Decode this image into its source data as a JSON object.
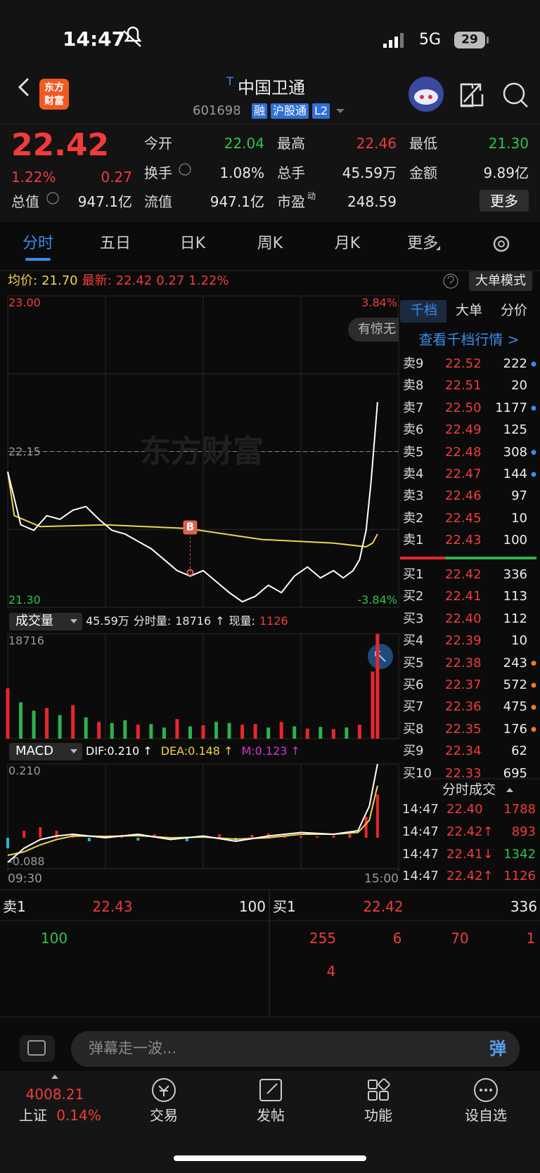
{
  "status_bar": {
    "time": "14:47",
    "network": "5G",
    "battery": "29"
  },
  "header": {
    "logo": [
      "东方",
      "财富"
    ],
    "title_mark": "T",
    "title": "中国卫通",
    "code": "601698",
    "tags": [
      "融",
      "沪股通",
      "L2"
    ]
  },
  "quote": {
    "price": "22.42",
    "change_pct": "1.22%",
    "change": "0.27",
    "more": "更多",
    "fields": [
      {
        "label": "今开",
        "value": "22.04",
        "color": "#2ec34a"
      },
      {
        "label": "最高",
        "value": "22.46",
        "color": "#f23b3b"
      },
      {
        "label": "最低",
        "value": "21.30",
        "color": "#2ec34a"
      },
      {
        "label": "换手",
        "value": "1.08%",
        "color": "#e8e8e8"
      },
      {
        "label": "总手",
        "value": "45.59万",
        "color": "#e8e8e8"
      },
      {
        "label": "金额",
        "value": "9.89亿",
        "color": "#e8e8e8"
      },
      {
        "label": "总值",
        "value": "947.1亿",
        "color": "#e8e8e8"
      },
      {
        "label": "流值",
        "value": "947.1亿",
        "color": "#e8e8e8"
      },
      {
        "label": "市盈",
        "sup": "动",
        "value": "248.59",
        "color": "#e8e8e8"
      }
    ]
  },
  "tabs": [
    "分时",
    "五日",
    "日K",
    "周K",
    "月K",
    "更多"
  ],
  "active_tab": 0,
  "info_bar": {
    "avg_label": "均价:",
    "avg": "21.70",
    "last_label": "最新:",
    "last": "22.42",
    "change": "0.27",
    "change_pct": "1.22%",
    "mode": "大单模式"
  },
  "chart_data": [
    {
      "type": "line",
      "watermark": "东方财富",
      "popup": "有惊无",
      "xlim": [
        0,
        240
      ],
      "ylim": [
        21.3,
        23.0
      ],
      "yticks": [
        {
          "value": 23.0,
          "label": "23.00",
          "color": "#f23b3b"
        },
        {
          "value": 22.15,
          "label": "22.15",
          "color": "#9a9a9a"
        },
        {
          "value": 21.3,
          "label": "21.30",
          "color": "#2ec34a"
        }
      ],
      "y2lim": [
        -3.84,
        3.84
      ],
      "y2ticks": [
        {
          "value": 3.84,
          "label": "3.84%",
          "color": "#f23b3b"
        },
        {
          "value": -3.84,
          "label": "-3.84%",
          "color": "#2ec34a"
        }
      ],
      "grid": true,
      "series": [
        {
          "color": "#ffffff",
          "x": [
            0,
            8,
            16,
            24,
            32,
            40,
            48,
            56,
            64,
            72,
            80,
            88,
            96,
            104,
            112,
            120,
            128,
            136,
            144,
            152,
            160,
            168,
            176,
            184,
            192,
            200,
            206,
            212,
            216,
            220,
            223,
            225,
            227
          ],
          "values": [
            22.04,
            21.75,
            21.72,
            21.8,
            21.78,
            21.83,
            21.85,
            21.78,
            21.72,
            21.7,
            21.66,
            21.62,
            21.56,
            21.5,
            21.47,
            21.5,
            21.44,
            21.38,
            21.33,
            21.36,
            21.42,
            21.38,
            21.47,
            21.52,
            21.46,
            21.5,
            21.46,
            21.5,
            21.56,
            21.72,
            21.98,
            22.2,
            22.42
          ]
        },
        {
          "color": "#f0d34a",
          "x": [
            0,
            4,
            20,
            60,
            110,
            156,
            200,
            220,
            224,
            227
          ],
          "values": [
            22.04,
            21.8,
            21.74,
            21.75,
            21.73,
            21.67,
            21.65,
            21.63,
            21.65,
            21.7
          ]
        }
      ],
      "marker": {
        "label": "B",
        "x": 112,
        "y": 21.49,
        "color": "#e0604e"
      }
    },
    {
      "type": "bar",
      "label": "成交量",
      "total": "45.59万",
      "bar_label": "分时量:",
      "bar_value": "18716",
      "bar_arrow": "↑",
      "now_label": "现量:",
      "now_value": "1126",
      "xlim": [
        0,
        240
      ],
      "ylim": [
        0,
        18716
      ],
      "yticks": [
        18716
      ],
      "x": [
        0,
        8,
        16,
        24,
        32,
        40,
        48,
        56,
        64,
        72,
        80,
        88,
        96,
        104,
        112,
        120,
        128,
        136,
        144,
        152,
        160,
        168,
        176,
        184,
        192,
        200,
        208,
        216,
        224,
        227
      ],
      "values": [
        9000,
        6500,
        5000,
        5500,
        4200,
        6000,
        3800,
        3000,
        2800,
        3300,
        2500,
        2600,
        2000,
        3500,
        2200,
        2400,
        3000,
        2800,
        2500,
        2600,
        2000,
        3000,
        2200,
        1800,
        2100,
        1700,
        2000,
        2500,
        12000,
        18716
      ],
      "colors": [
        "#e8262d",
        "#2bb24c",
        "#2bb24c",
        "#e8262d",
        "#2bb24c",
        "#e8262d",
        "#2bb24c",
        "#e8262d",
        "#2bb24c",
        "#2bb24c",
        "#e8262d",
        "#2bb24c",
        "#2bb24c",
        "#e8262d",
        "#2bb24c",
        "#e8262d",
        "#2bb24c",
        "#2bb24c",
        "#e8262d",
        "#e8262d",
        "#2bb24c",
        "#e8262d",
        "#2bb24c",
        "#e8262d",
        "#2bb24c",
        "#e8262d",
        "#2bb24c",
        "#e8262d",
        "#e8262d",
        "#e8262d"
      ]
    },
    {
      "type": "macd",
      "label": "MACD",
      "dif_label": "DIF:0.210 ↑",
      "dea_label": "DEA:0.148 ↑",
      "m_label": "M:0.123 ↑",
      "xlim": [
        0,
        240
      ],
      "ylim": [
        -0.088,
        0.21
      ],
      "yticks": [
        {
          "value": 0.21,
          "label": "0.210"
        },
        {
          "value": -0.088,
          "label": "-0.088"
        }
      ],
      "xticks": [
        {
          "value": 0,
          "label": "09:30"
        },
        {
          "value": 240,
          "label": "15:00"
        }
      ],
      "up_color": "#e8262d",
      "down_color": "#25b8c8",
      "series": [
        {
          "color": "#ffffff",
          "x": [
            0,
            10,
            20,
            30,
            40,
            60,
            80,
            100,
            120,
            140,
            160,
            180,
            200,
            215,
            222,
            227
          ],
          "values": [
            -0.07,
            -0.03,
            -0.005,
            0.005,
            0.01,
            0.0,
            0.01,
            -0.005,
            0.005,
            -0.01,
            0.005,
            0.015,
            0.01,
            0.02,
            0.09,
            0.21
          ]
        },
        {
          "color": "#f0d34a",
          "x": [
            0,
            10,
            20,
            30,
            40,
            60,
            80,
            100,
            120,
            140,
            160,
            180,
            200,
            215,
            222,
            227
          ],
          "values": [
            -0.05,
            -0.04,
            -0.02,
            -0.005,
            0.005,
            0.004,
            0.006,
            0.0,
            0.002,
            -0.004,
            0.0,
            0.01,
            0.01,
            0.015,
            0.05,
            0.148
          ]
        }
      ],
      "histogram": {
        "x": [
          0,
          10,
          20,
          30,
          40,
          50,
          60,
          70,
          80,
          90,
          100,
          110,
          120,
          130,
          140,
          150,
          160,
          170,
          180,
          190,
          200,
          210,
          220,
          227
        ],
        "values": [
          -0.03,
          0.02,
          0.03,
          0.02,
          0.01,
          -0.01,
          0.005,
          0.008,
          -0.008,
          0.01,
          -0.006,
          -0.01,
          0.005,
          0.01,
          -0.008,
          0.008,
          0.012,
          0.006,
          0.005,
          0.004,
          0.006,
          0.01,
          0.06,
          0.123
        ]
      }
    }
  ],
  "order_book": {
    "tabs": [
      "千档",
      "大单",
      "分价"
    ],
    "link": "查看千档行情 >",
    "asks": [
      {
        "label": "卖9",
        "price": "22.52",
        "volume": 222,
        "dot": "#3b8bea"
      },
      {
        "label": "卖8",
        "price": "22.51",
        "volume": 20
      },
      {
        "label": "卖7",
        "price": "22.50",
        "volume": 1177,
        "dot": "#3b8bea"
      },
      {
        "label": "卖6",
        "price": "22.49",
        "volume": 125
      },
      {
        "label": "卖5",
        "price": "22.48",
        "volume": 308,
        "dot": "#3b8bea"
      },
      {
        "label": "卖4",
        "price": "22.47",
        "volume": 144,
        "dot": "#3b8bea"
      },
      {
        "label": "卖3",
        "price": "22.46",
        "volume": 97
      },
      {
        "label": "卖2",
        "price": "22.45",
        "volume": 10
      },
      {
        "label": "卖1",
        "price": "22.43",
        "volume": 100
      }
    ],
    "bids": [
      {
        "label": "买1",
        "price": "22.42",
        "volume": 336
      },
      {
        "label": "买2",
        "price": "22.41",
        "volume": 113
      },
      {
        "label": "买3",
        "price": "22.40",
        "volume": 112
      },
      {
        "label": "买4",
        "price": "22.39",
        "volume": 10
      },
      {
        "label": "买5",
        "price": "22.38",
        "volume": 243,
        "dot": "#f07a2a"
      },
      {
        "label": "买6",
        "price": "22.37",
        "volume": 572,
        "dot": "#f07a2a"
      },
      {
        "label": "买7",
        "price": "22.36",
        "volume": 475,
        "dot": "#f07a2a"
      },
      {
        "label": "买8",
        "price": "22.35",
        "volume": 176,
        "dot": "#f07a2a"
      },
      {
        "label": "买9",
        "price": "22.34",
        "volume": 62
      },
      {
        "label": "买10",
        "price": "22.33",
        "volume": 695
      }
    ],
    "trades_title": "分时成交",
    "trades": [
      {
        "time": "14:47",
        "price": "22.40",
        "volume": "1788",
        "color": "#f23b3b"
      },
      {
        "time": "14:47",
        "price": "22.42↑",
        "volume": "893",
        "color": "#f23b3b"
      },
      {
        "time": "14:47",
        "price": "22.41↓",
        "volume": "1342",
        "color": "#2ec34a"
      },
      {
        "time": "14:47",
        "price": "22.42↑",
        "volume": "1126",
        "color": "#f23b3b"
      }
    ]
  },
  "level1": {
    "ask_label": "卖1",
    "ask_price": "22.43",
    "ask_volume": "100",
    "bid_label": "买1",
    "bid_price": "22.42",
    "bid_volume": "336",
    "ask_queue": [
      "100"
    ],
    "bid_queue": [
      "255",
      "6",
      "70",
      "1",
      "4"
    ]
  },
  "comment": {
    "placeholder": "弹幕走一波...",
    "button": "弹"
  },
  "nav": {
    "index_value": "4008.21",
    "index_name": "上证",
    "index_change": "0.14%",
    "items": [
      "交易",
      "发帖",
      "功能",
      "设自选"
    ]
  }
}
